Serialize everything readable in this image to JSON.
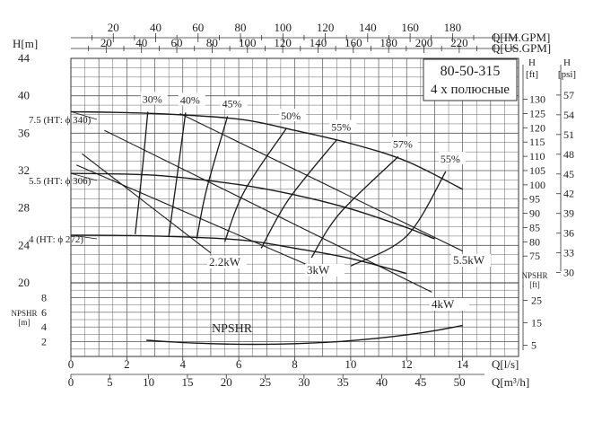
{
  "chart_data": {
    "type": "line",
    "title": "80-50-315",
    "subtitle": "4 х полюсные",
    "top_axes": [
      {
        "label": "Q[IM.GPM]",
        "ticks": [
          "20",
          "40",
          "60",
          "80",
          "100",
          "120",
          "140",
          "160",
          "180"
        ],
        "values": [
          20,
          40,
          60,
          80,
          100,
          120,
          140,
          160,
          180
        ],
        "q_ls_per_unit": 0.07577
      },
      {
        "label": "Q[US.GPM]",
        "ticks": [
          "20",
          "40",
          "60",
          "80",
          "100",
          "120",
          "140",
          "160",
          "180",
          "200",
          "220"
        ],
        "values": [
          20,
          40,
          60,
          80,
          100,
          120,
          140,
          160,
          180,
          200,
          220
        ],
        "q_ls_per_unit": 0.06309
      }
    ],
    "bottom_axes": [
      {
        "label": "Q[l/s]",
        "ticks": [
          "0",
          "2",
          "4",
          "6",
          "8",
          "10",
          "12",
          "14"
        ],
        "values": [
          0,
          2,
          4,
          6,
          8,
          10,
          12,
          14
        ]
      },
      {
        "label": "Q[m³/h]",
        "ticks": [
          "0",
          "5",
          "10",
          "15",
          "20",
          "25",
          "30",
          "35",
          "40",
          "45",
          "50"
        ],
        "values": [
          0,
          5,
          10,
          15,
          20,
          25,
          30,
          35,
          40,
          45,
          50
        ],
        "q_ls_per_unit": 0.27778
      }
    ],
    "head_axis_left": {
      "label": "H[m]",
      "ticks": [
        "20",
        "24",
        "28",
        "32",
        "36",
        "40",
        "44"
      ],
      "values": [
        20,
        24,
        28,
        32,
        36,
        40,
        44
      ],
      "range": [
        20,
        44
      ]
    },
    "head_axis_ft": {
      "label": "H",
      "unit": "[ft]",
      "ticks": [
        "75",
        "80",
        "85",
        "90",
        "95",
        "100",
        "105",
        "110",
        "115",
        "120",
        "125",
        "130"
      ],
      "values": [
        75,
        80,
        85,
        90,
        95,
        100,
        105,
        110,
        115,
        120,
        125,
        130
      ],
      "m_per_unit": 0.3048
    },
    "head_axis_psi": {
      "label": "H",
      "unit": "[psi]",
      "ticks": [
        "30",
        "33",
        "36",
        "39",
        "42",
        "45",
        "48",
        "51",
        "54",
        "57"
      ],
      "values": [
        30,
        33,
        36,
        39,
        42,
        45,
        48,
        51,
        54,
        57
      ],
      "m_per_unit": 0.7031
    },
    "npsh_axis_left": {
      "label": "NPSHR",
      "unit": "[m]",
      "ticks": [
        "2",
        "4",
        "6",
        "8"
      ],
      "values": [
        2,
        4,
        6,
        8
      ],
      "range": [
        0,
        10
      ]
    },
    "npsh_axis_ft": {
      "label": "NPSHR",
      "unit": "[ft]",
      "ticks": [
        "5",
        "15",
        "25"
      ],
      "values": [
        5,
        15,
        25
      ],
      "m_per_unit": 0.3048
    },
    "head_curves": [
      {
        "name": "7.5 (НТ: ϕ 340)",
        "x": [
          0,
          3,
          6,
          8,
          10,
          12,
          14
        ],
        "y": [
          38.3,
          38.1,
          37.5,
          36.3,
          34.9,
          33.0,
          30.0
        ]
      },
      {
        "name": "5.5 (НТ: ϕ 306)",
        "x": [
          0,
          3,
          6,
          8,
          10,
          12,
          13
        ],
        "y": [
          31.7,
          31.5,
          30.5,
          29.4,
          27.9,
          25.9,
          24.7
        ]
      },
      {
        "name": "4 (НТ: ϕ 272)",
        "x": [
          0,
          3,
          6,
          8,
          10,
          12
        ],
        "y": [
          25.1,
          25.0,
          24.6,
          23.7,
          22.6,
          21.0
        ]
      }
    ],
    "power_lines": [
      {
        "name": "2.2kW",
        "x": [
          0.4,
          5.0
        ],
        "y": [
          33.8,
          23.2
        ]
      },
      {
        "name": "3kW",
        "x": [
          0.2,
          8.7
        ],
        "y": [
          32.6,
          21.6
        ]
      },
      {
        "name": "5.5kW",
        "x": [
          3.9,
          14.0
        ],
        "y": [
          38.1,
          23.4
        ]
      },
      {
        "name": "4kW",
        "x": [
          1.2,
          12.9
        ],
        "y": [
          36.3,
          19.0
        ]
      }
    ],
    "efficiency_curves": [
      {
        "name": "30%",
        "x": [
          2.3,
          2.55,
          2.75
        ],
        "y": [
          25.2,
          32.0,
          38.3
        ]
      },
      {
        "name": "40%",
        "x": [
          3.5,
          3.8,
          4.1
        ],
        "y": [
          25.0,
          31.5,
          38.2
        ]
      },
      {
        "name": "45%",
        "x": [
          4.5,
          4.85,
          5.6
        ],
        "y": [
          24.7,
          30.0,
          37.8
        ]
      },
      {
        "name": "50%",
        "x": [
          5.5,
          6.2,
          7.7
        ],
        "y": [
          24.4,
          29.8,
          36.5
        ]
      },
      {
        "name": "55%",
        "x": [
          6.8,
          7.8,
          9.5
        ],
        "y": [
          23.7,
          29.0,
          35.3
        ]
      },
      {
        "name": "57%",
        "x": [
          8.6,
          9.6,
          11.7
        ],
        "y": [
          22.7,
          27.4,
          33.5
        ]
      },
      {
        "name": "55%",
        "x": [
          10.0,
          12.0,
          13.4
        ],
        "y": [
          21.8,
          25.0,
          31.9
        ]
      }
    ],
    "npshr_curve": {
      "name": "NPSHR",
      "x": [
        2.7,
        4.5,
        6.5,
        8.5,
        10.5,
        12.5,
        14.0
      ],
      "y": [
        2.2,
        1.8,
        1.65,
        1.8,
        2.3,
        3.2,
        4.2
      ]
    }
  }
}
